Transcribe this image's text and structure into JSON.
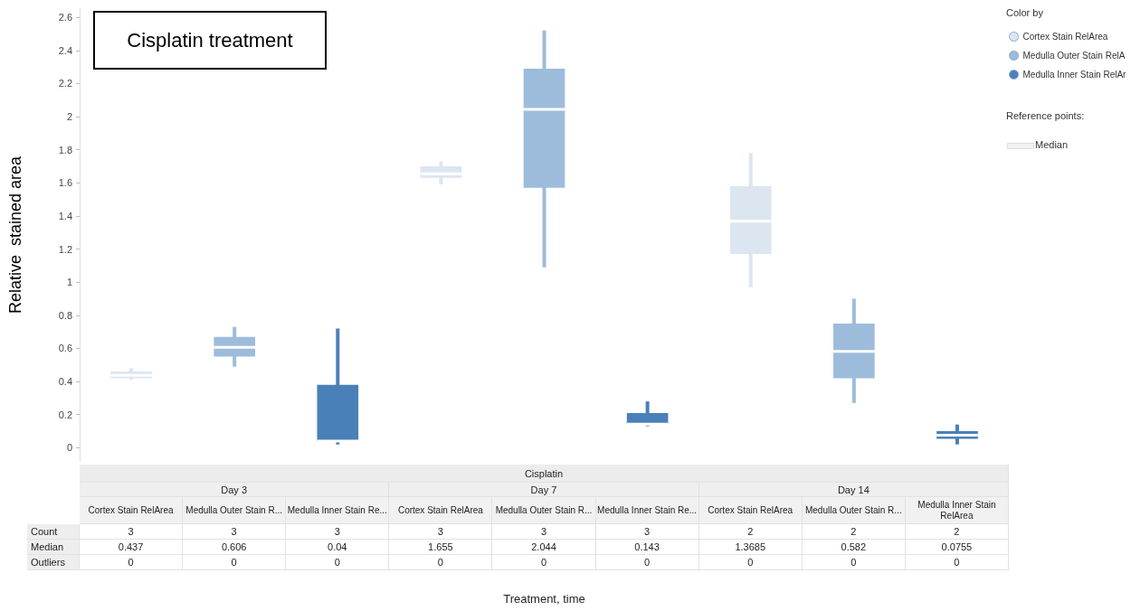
{
  "chart_data": {
    "type": "box",
    "title": "Cisplatin treatment",
    "ylabel": "Relative  stained area",
    "legend_title": "Color by",
    "categories": [
      "Cortex Stain RelArea",
      "Medulla Outer Stain R...",
      "Medulla Inner Stain Re...",
      "Cortex Stain RelArea",
      "Medulla Outer Stain R...",
      "Medulla Inner Stain Re...",
      "Cortex Stain RelArea",
      "Medulla Outer Stain R...",
      "Medulla Inner Stain RelArea"
    ],
    "series": [
      {
        "name": "Cortex Stain RelArea",
        "color": "#dce6f1",
        "boxes": [
          {
            "low": 0.41,
            "q1": 0.42,
            "median": 0.437,
            "q3": 0.46,
            "high": 0.48
          },
          null,
          null,
          {
            "low": 1.59,
            "q1": 1.63,
            "median": 1.655,
            "q3": 1.7,
            "high": 1.73
          },
          null,
          null,
          {
            "low": 0.97,
            "q1": 1.17,
            "median": 1.3685,
            "q3": 1.58,
            "high": 1.78
          },
          null,
          null
        ]
      },
      {
        "name": "Medulla Outer Stain RelA",
        "color": "#9dbcdb",
        "boxes": [
          null,
          {
            "low": 0.49,
            "q1": 0.55,
            "median": 0.606,
            "q3": 0.67,
            "high": 0.73
          },
          null,
          null,
          {
            "low": 1.09,
            "q1": 1.57,
            "median": 2.044,
            "q3": 2.29,
            "high": 2.52
          },
          null,
          null,
          {
            "low": 0.27,
            "q1": 0.42,
            "median": 0.582,
            "q3": 0.75,
            "high": 0.9
          },
          null
        ]
      },
      {
        "name": "Medulla Inner Stain RelAr",
        "color": "#4a80b8",
        "boxes": [
          null,
          null,
          {
            "low": 0.02,
            "q1": 0.04,
            "median": 0.04,
            "q3": 0.38,
            "high": 0.72
          },
          null,
          null,
          {
            "low": 0.13,
            "q1": 0.143,
            "median": 0.143,
            "q3": 0.21,
            "high": 0.28
          },
          null,
          null,
          {
            "low": 0.02,
            "q1": 0.054,
            "median": 0.0755,
            "q3": 0.1,
            "high": 0.14
          }
        ]
      }
    ],
    "ylim": [
      -0.08,
      2.65
    ],
    "yticks": [
      0,
      0.2,
      0.4,
      0.6,
      0.8,
      1,
      1.2,
      1.4,
      1.6,
      1.8,
      2,
      2.2,
      2.4,
      2.6
    ],
    "grid": false,
    "legend": "top right",
    "annotations": [
      "Reference points:",
      "Median",
      "Treatment, time",
      "Cisplatin",
      "Day 3",
      "Day 7",
      "Day 14",
      "Count",
      "3",
      "3",
      "3",
      "3",
      "3",
      "3",
      "2",
      "2",
      "2",
      "Median",
      "0.437",
      "0.606",
      "0.04",
      "1.655",
      "2.044",
      "0.143",
      "1.3685",
      "0.582",
      "0.0755",
      "Outliers",
      "0",
      "0",
      "0",
      "0",
      "0",
      "0",
      "0",
      "0",
      "0"
    ]
  }
}
